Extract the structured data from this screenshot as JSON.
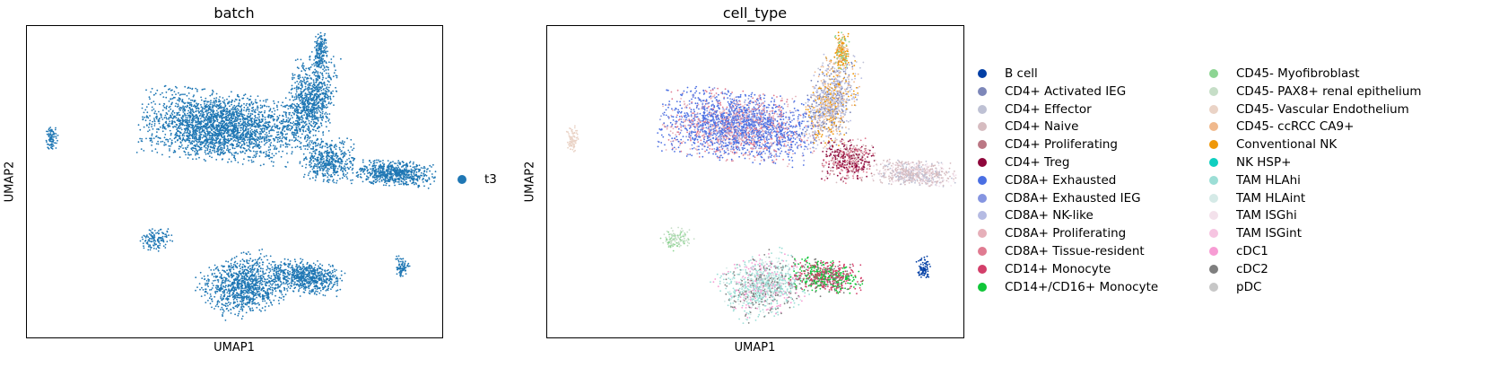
{
  "chart_data": [
    {
      "type": "scatter",
      "title": "batch",
      "xlabel": "UMAP1",
      "ylabel": "UMAP2",
      "ticks": "none",
      "legend_position": "right",
      "series": [
        {
          "name": "t3",
          "color": "#1f77b4"
        }
      ]
    },
    {
      "type": "scatter",
      "title": "cell_type",
      "xlabel": "UMAP1",
      "ylabel": "UMAP2",
      "ticks": "none",
      "legend_position": "right",
      "series": [
        {
          "name": "B cell",
          "color": "#023fa5"
        },
        {
          "name": "CD4+ Activated IEG",
          "color": "#7d87b9"
        },
        {
          "name": "CD4+ Effector",
          "color": "#bec1d4"
        },
        {
          "name": "CD4+ Naive",
          "color": "#d6bcc0"
        },
        {
          "name": "CD4+ Proliferating",
          "color": "#bb7784"
        },
        {
          "name": "CD4+ Treg",
          "color": "#8e063b"
        },
        {
          "name": "CD8A+ Exhausted",
          "color": "#4a6fe3"
        },
        {
          "name": "CD8A+ Exhausted IEG",
          "color": "#8595e1"
        },
        {
          "name": "CD8A+ NK-like",
          "color": "#b5bbe3"
        },
        {
          "name": "CD8A+ Proliferating",
          "color": "#e6afb9"
        },
        {
          "name": "CD8A+ Tissue-resident",
          "color": "#e07b91"
        },
        {
          "name": "CD14+ Monocyte",
          "color": "#d33f6a"
        },
        {
          "name": "CD14+/CD16+ Monocyte",
          "color": "#11c638"
        },
        {
          "name": "CD45- Myofibroblast",
          "color": "#8dd593"
        },
        {
          "name": "CD45- PAX8+ renal epithelium",
          "color": "#c6dec7"
        },
        {
          "name": "CD45- Vascular Endothelium",
          "color": "#ead3c6"
        },
        {
          "name": "CD45- ccRCC CA9+",
          "color": "#f0b98d"
        },
        {
          "name": "Conventional NK",
          "color": "#ef9708"
        },
        {
          "name": "NK HSP+",
          "color": "#0fcfc0"
        },
        {
          "name": "TAM HLAhi",
          "color": "#9cded6"
        },
        {
          "name": "TAM HLAint",
          "color": "#d5eae7"
        },
        {
          "name": "TAM ISGhi",
          "color": "#f3e1eb"
        },
        {
          "name": "TAM ISGint",
          "color": "#f6c4e1"
        },
        {
          "name": "cDC1",
          "color": "#f79cd4"
        },
        {
          "name": "cDC2",
          "color": "#7f7f7f"
        },
        {
          "name": "pDC",
          "color": "#c7c7c7"
        }
      ]
    }
  ]
}
